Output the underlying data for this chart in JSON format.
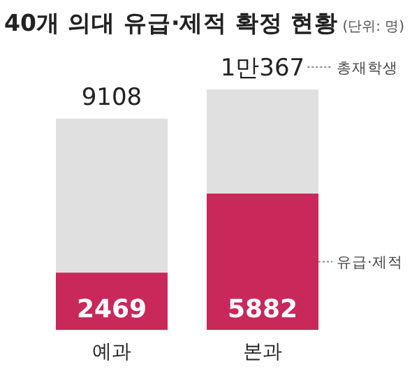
{
  "chart_data": {
    "type": "bar",
    "title": "40개 의대 유급·제적 확정 현황",
    "subtitle": "(단위: 명)",
    "categories": [
      "예과",
      "본과"
    ],
    "stacked": true,
    "series": [
      {
        "name": "유급·제적",
        "color": "#c8285a",
        "values": [
          2469,
          5882
        ],
        "value_labels": [
          "2469",
          "5882"
        ]
      },
      {
        "name": "총재학생",
        "color": "#e0e0e0",
        "values": [
          6639,
          4485
        ]
      }
    ],
    "totals": [
      "9108",
      "1만367"
    ]
  }
}
